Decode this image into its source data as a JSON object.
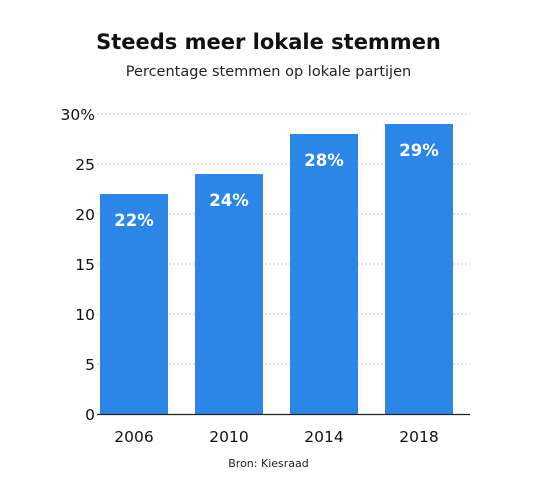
{
  "chart_data": {
    "type": "bar",
    "title": "Steeds meer lokale stemmen",
    "subtitle": "Percentage stemmen op lokale partijen",
    "categories": [
      "2006",
      "2010",
      "2014",
      "2018"
    ],
    "values": [
      22,
      24,
      28,
      29
    ],
    "value_labels": [
      "22%",
      "24%",
      "28%",
      "29%"
    ],
    "ylim": [
      0,
      30
    ],
    "y_ticks": [
      0,
      5,
      10,
      15,
      20,
      25,
      30
    ],
    "y_tick_labels": [
      "0",
      "5",
      "10",
      "15",
      "20",
      "25",
      "30%"
    ],
    "xlabel": "",
    "ylabel": "",
    "grid": true,
    "legend": "none",
    "bar_color": "#2b86e8",
    "label_color": "#ffffff",
    "source": "Bron: Kiesraad"
  }
}
